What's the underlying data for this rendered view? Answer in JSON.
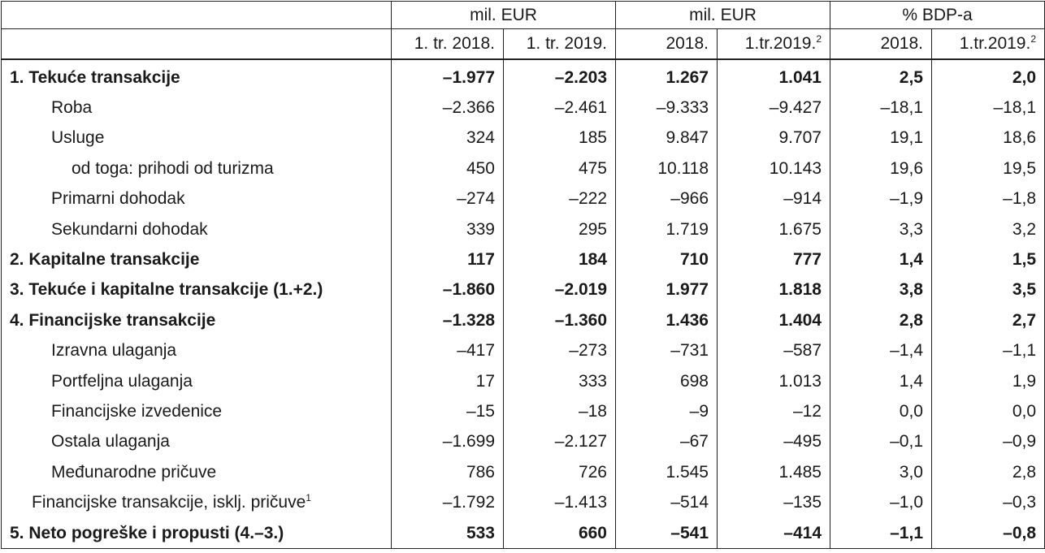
{
  "header": {
    "group1": "mil. EUR",
    "group2": "mil. EUR",
    "group3": "% BDP-a",
    "col1": "1. tr. 2018.",
    "col2": "1. tr. 2019.",
    "col3": "2018.",
    "col4": "1.tr.2019.",
    "col4_sup": "2",
    "col5": "2018.",
    "col6": "1.tr.2019.",
    "col6_sup": "2"
  },
  "rows": [
    {
      "label": "1. Tekuće transakcije",
      "sup": "",
      "values": [
        "–1.977",
        "–2.203",
        "1.267",
        "1.041",
        "2,5",
        "2,0"
      ]
    },
    {
      "label": "Roba",
      "sup": "",
      "values": [
        "–2.366",
        "–2.461",
        "–9.333",
        "–9.427",
        "–18,1",
        "–18,1"
      ]
    },
    {
      "label": "Usluge",
      "sup": "",
      "values": [
        "324",
        "185",
        "9.847",
        "9.707",
        "19,1",
        "18,6"
      ]
    },
    {
      "label": "od toga: prihodi od turizma",
      "sup": "",
      "values": [
        "450",
        "475",
        "10.118",
        "10.143",
        "19,6",
        "19,5"
      ]
    },
    {
      "label": "Primarni dohodak",
      "sup": "",
      "values": [
        "–274",
        "–222",
        "–966",
        "–914",
        "–1,9",
        "–1,8"
      ]
    },
    {
      "label": "Sekundarni dohodak",
      "sup": "",
      "values": [
        "339",
        "295",
        "1.719",
        "1.675",
        "3,3",
        "3,2"
      ]
    },
    {
      "label": "2. Kapitalne transakcije",
      "sup": "",
      "values": [
        "117",
        "184",
        "710",
        "777",
        "1,4",
        "1,5"
      ]
    },
    {
      "label": "3. Tekuće i kapitalne transakcije (1.+2.)",
      "sup": "",
      "values": [
        "–1.860",
        "–2.019",
        "1.977",
        "1.818",
        "3,8",
        "3,5"
      ]
    },
    {
      "label": "4. Financijske transakcije",
      "sup": "",
      "values": [
        "–1.328",
        "–1.360",
        "1.436",
        "1.404",
        "2,8",
        "2,7"
      ]
    },
    {
      "label": "Izravna ulaganja",
      "sup": "",
      "values": [
        "–417",
        "–273",
        "–731",
        "–587",
        "–1,4",
        "–1,1"
      ]
    },
    {
      "label": "Portfeljna ulaganja",
      "sup": "",
      "values": [
        "17",
        "333",
        "698",
        "1.013",
        "1,4",
        "1,9"
      ]
    },
    {
      "label": "Financijske izvedenice",
      "sup": "",
      "values": [
        "–15",
        "–18",
        "–9",
        "–12",
        "0,0",
        "0,0"
      ]
    },
    {
      "label": "Ostala ulaganja",
      "sup": "",
      "values": [
        "–1.699",
        "–2.127",
        "–67",
        "–495",
        "–0,1",
        "–0,9"
      ]
    },
    {
      "label": "Međunarodne pričuve",
      "sup": "",
      "values": [
        "786",
        "726",
        "1.545",
        "1.485",
        "3,0",
        "2,8"
      ]
    },
    {
      "label": "Financijske transakcije, isklj. pričuve",
      "sup": "1",
      "values": [
        "–1.792",
        "–1.413",
        "–514",
        "–135",
        "–1,0",
        "–0,3"
      ]
    },
    {
      "label": "5. Neto pogreške i propusti (4.–3.)",
      "sup": "",
      "values": [
        "533",
        "660",
        "–541",
        "–414",
        "–1,1",
        "–0,8"
      ]
    }
  ]
}
